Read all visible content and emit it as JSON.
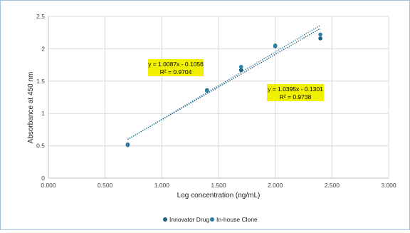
{
  "chart_data": {
    "type": "scatter",
    "title": "",
    "xlabel": "Log concentration (ng/mL)",
    "ylabel": "Absorbance at 450 nm",
    "xlim": [
      0,
      3
    ],
    "ylim": [
      0,
      2.5
    ],
    "x_ticks": [
      "0.000",
      "0.500",
      "1.000",
      "1.500",
      "2.000",
      "2.500",
      "3.000"
    ],
    "y_ticks": [
      "0",
      "0.5",
      "1",
      "1.5",
      "2",
      "2.5"
    ],
    "grid": true,
    "legend_position": "bottom",
    "series": [
      {
        "name": "Innovator Drug",
        "color": "#1f5e7f",
        "points": [
          [
            0.699,
            0.52
          ],
          [
            1.398,
            1.36
          ],
          [
            1.699,
            1.67
          ],
          [
            2.0,
            2.04
          ],
          [
            2.398,
            2.16
          ]
        ],
        "trendline": {
          "slope": 1.0087,
          "intercept": -0.1056,
          "equation": "y = 1.0087x - 0.1056",
          "r2": "R² = 0.9704"
        }
      },
      {
        "name": "In-house Clone",
        "color": "#2d7fa5",
        "points": [
          [
            0.699,
            0.51
          ],
          [
            1.398,
            1.35
          ],
          [
            1.699,
            1.72
          ],
          [
            2.0,
            2.05
          ],
          [
            2.398,
            2.22
          ]
        ],
        "trendline": {
          "slope": 1.0395,
          "intercept": -0.1301,
          "equation": "y = 1.0395x - 0.1301",
          "r2": "R² = 0.9738"
        }
      }
    ],
    "trendline_range": [
      0.699,
      2.398
    ],
    "annotation_color": "#f0f000"
  }
}
